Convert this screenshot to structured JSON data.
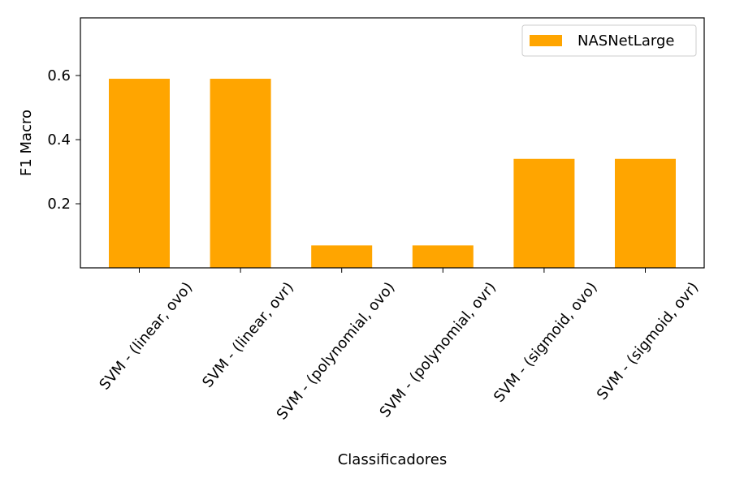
{
  "chart_data": {
    "type": "bar",
    "title": "",
    "xlabel": "Classificadores",
    "ylabel": "F1 Macro",
    "categories": [
      "SVM - (linear, ovo)",
      "SVM - (linear, ovr)",
      "SVM - (polynomial, ovo)",
      "SVM - (polynomial, ovr)",
      "SVM - (sigmoid, ovo)",
      "SVM - (sigmoid, ovr)"
    ],
    "series": [
      {
        "name": "NASNetLarge",
        "color": "#ffa500",
        "values": [
          0.59,
          0.59,
          0.07,
          0.07,
          0.34,
          0.34
        ]
      }
    ],
    "ylim": [
      0.0,
      0.78
    ],
    "yticks": [
      0.2,
      0.4,
      0.6
    ],
    "ytick_labels": [
      "0.2",
      "0.4",
      "0.6"
    ],
    "grid": false,
    "legend_position": "upper right"
  }
}
